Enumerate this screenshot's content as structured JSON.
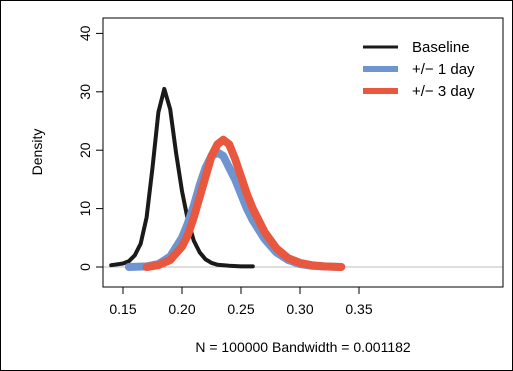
{
  "chart_data": {
    "type": "line",
    "title": "",
    "xlabel": "N = 100000   Bandwidth = 0.001182",
    "ylabel": "Density",
    "xlim": [
      0.14,
      0.36
    ],
    "ylim": [
      -1,
      40
    ],
    "x_ticks": [
      0.15,
      0.2,
      0.25,
      0.3,
      0.35
    ],
    "x_tick_labels": [
      "0.15",
      "0.20",
      "0.25",
      "0.30",
      "0.35"
    ],
    "y_ticks": [
      0,
      10,
      20,
      30,
      40
    ],
    "y_tick_labels": [
      "0",
      "10",
      "20",
      "30",
      "40"
    ],
    "grid": false,
    "legend_position": "top-right",
    "series": [
      {
        "name": "Baseline",
        "color": "#1a1a1a",
        "x": [
          0.14,
          0.15,
          0.155,
          0.16,
          0.165,
          0.17,
          0.175,
          0.18,
          0.185,
          0.19,
          0.195,
          0.2,
          0.205,
          0.21,
          0.215,
          0.22,
          0.225,
          0.23,
          0.24,
          0.25,
          0.26
        ],
        "y": [
          0.3,
          0.6,
          1.0,
          2.0,
          4.0,
          8.5,
          17.0,
          26.5,
          30.5,
          27.0,
          19.5,
          13.0,
          8.0,
          4.5,
          2.5,
          1.3,
          0.7,
          0.4,
          0.2,
          0.1,
          0.1
        ]
      },
      {
        "name": "+/− 1 day",
        "color": "#6f95d1",
        "x": [
          0.155,
          0.17,
          0.18,
          0.19,
          0.2,
          0.205,
          0.21,
          0.215,
          0.22,
          0.225,
          0.23,
          0.235,
          0.24,
          0.245,
          0.25,
          0.255,
          0.26,
          0.27,
          0.28,
          0.29,
          0.3,
          0.31,
          0.32,
          0.335
        ],
        "y": [
          0.0,
          0.1,
          0.5,
          1.8,
          5.0,
          7.5,
          10.5,
          14.0,
          17.0,
          19.0,
          19.6,
          19.0,
          17.0,
          15.0,
          12.5,
          10.0,
          8.0,
          4.8,
          2.5,
          1.2,
          0.5,
          0.2,
          0.1,
          0.0
        ]
      },
      {
        "name": "+/− 3 day",
        "color": "#e9573f",
        "x": [
          0.17,
          0.18,
          0.19,
          0.2,
          0.205,
          0.21,
          0.215,
          0.22,
          0.225,
          0.23,
          0.235,
          0.24,
          0.245,
          0.25,
          0.255,
          0.26,
          0.27,
          0.28,
          0.29,
          0.3,
          0.31,
          0.32,
          0.335
        ],
        "y": [
          0.0,
          0.3,
          1.2,
          3.5,
          5.5,
          8.5,
          12.0,
          15.5,
          19.0,
          21.0,
          21.8,
          21.0,
          18.5,
          15.5,
          12.5,
          10.0,
          6.0,
          3.2,
          1.5,
          0.7,
          0.3,
          0.1,
          0.0
        ]
      }
    ]
  }
}
